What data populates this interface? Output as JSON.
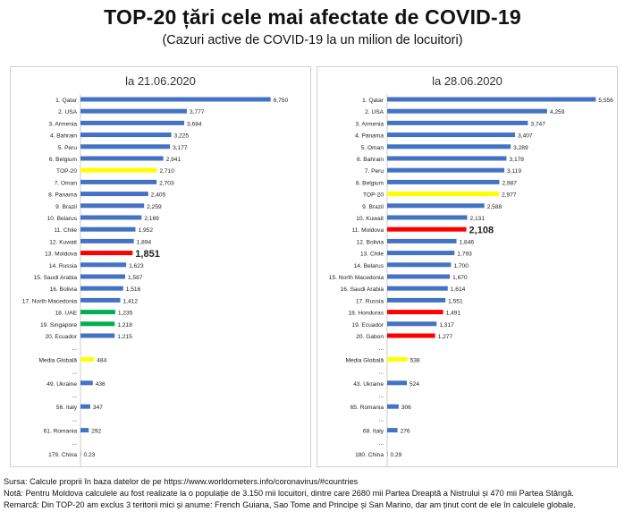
{
  "title": "TOP-20 țări cele mai afectate de COVID-19",
  "subtitle": "(Cazuri active de COVID-19 la un milion de locuitori)",
  "footer": {
    "source": "Sursa: Calcule proprii în baza datelor de pe https://www.worldometers.info/coronavirus/#countries",
    "note": "Notă: Pentru Moldova calculele au fost realizate la o populație de 3.150 mii locuitori, dintre care 2680 mii Partea Dreaptă a Nistrului și 470 mii Partea Stângă.",
    "remark": "Remarcă: Din TOP-20 am exclus 3 teritorii mici și anume: French Guiana, Sao Tome and Principe și San Marino, dar am ținut cont de ele în calculele globale."
  },
  "colors": {
    "blue": "#4472c4",
    "yellow": "#ffff00",
    "red": "#ff0000",
    "green": "#00b050"
  },
  "chart_data": [
    {
      "type": "bar",
      "orientation": "horizontal",
      "title": "la 21.06.2020",
      "xlim": [
        0,
        8000
      ],
      "xticks": [
        "0.00",
        "1,000.00",
        "2,000.00",
        "3,000.00",
        "4,000.00",
        "5,000.00",
        "6,000.00",
        "7,000.00",
        "8,000.00"
      ],
      "categories": [
        {
          "label": "1. Qatar",
          "value": 6750,
          "value_label": "6,750",
          "color": "blue"
        },
        {
          "label": "2. USA",
          "value": 3777,
          "value_label": "3,777",
          "color": "blue"
        },
        {
          "label": "3. Armenia",
          "value": 3684,
          "value_label": "3,684",
          "color": "blue"
        },
        {
          "label": "4. Bahrain",
          "value": 3225,
          "value_label": "3,225",
          "color": "blue"
        },
        {
          "label": "5. Peru",
          "value": 3177,
          "value_label": "3,177",
          "color": "blue"
        },
        {
          "label": "6. Belgium",
          "value": 2941,
          "value_label": "2,941",
          "color": "blue"
        },
        {
          "label": "TOP-20",
          "value": 2710,
          "value_label": "2,710",
          "color": "yellow"
        },
        {
          "label": "7. Oman",
          "value": 2703,
          "value_label": "2,703",
          "color": "blue"
        },
        {
          "label": "8. Panama",
          "value": 2405,
          "value_label": "2,405",
          "color": "blue"
        },
        {
          "label": "9. Brazil",
          "value": 2259,
          "value_label": "2,259",
          "color": "blue"
        },
        {
          "label": "10. Belarus",
          "value": 2169,
          "value_label": "2,169",
          "color": "blue"
        },
        {
          "label": "11. Chile",
          "value": 1952,
          "value_label": "1,952",
          "color": "blue"
        },
        {
          "label": "12. Kuwait",
          "value": 1894,
          "value_label": "1,894",
          "color": "blue"
        },
        {
          "label": "13. Moldova",
          "value": 1851,
          "value_label": "1,851",
          "color": "red",
          "highlight": true
        },
        {
          "label": "14. Russia",
          "value": 1623,
          "value_label": "1,623",
          "color": "blue"
        },
        {
          "label": "15. Saudi Arabia",
          "value": 1587,
          "value_label": "1,587",
          "color": "blue"
        },
        {
          "label": "16. Bolivia",
          "value": 1516,
          "value_label": "1,516",
          "color": "blue"
        },
        {
          "label": "17. North Macedonia",
          "value": 1412,
          "value_label": "1,412",
          "color": "blue"
        },
        {
          "label": "18. UAE",
          "value": 1235,
          "value_label": "1,235",
          "color": "green"
        },
        {
          "label": "19. Singapore",
          "value": 1218,
          "value_label": "1,218",
          "color": "green"
        },
        {
          "label": "20. Ecuador",
          "value": 1215,
          "value_label": "1,215",
          "color": "blue"
        },
        {
          "label": "...",
          "value": null,
          "value_label": "",
          "color": "blue"
        },
        {
          "label": "Media Globală",
          "value": 484,
          "value_label": "484",
          "color": "yellow"
        },
        {
          "label": "...",
          "value": null,
          "value_label": "",
          "color": "blue"
        },
        {
          "label": "49. Ukraine",
          "value": 436,
          "value_label": "436",
          "color": "blue"
        },
        {
          "label": "...",
          "value": null,
          "value_label": "",
          "color": "blue"
        },
        {
          "label": "56. Italy",
          "value": 347,
          "value_label": "347",
          "color": "blue"
        },
        {
          "label": "...",
          "value": null,
          "value_label": "",
          "color": "blue"
        },
        {
          "label": "61. Romania",
          "value": 292,
          "value_label": "292",
          "color": "blue"
        },
        {
          "label": "...",
          "value": null,
          "value_label": "",
          "color": "blue"
        },
        {
          "label": "179. China",
          "value": 0.23,
          "value_label": "0.23",
          "color": "blue"
        }
      ]
    },
    {
      "type": "bar",
      "orientation": "horizontal",
      "title": "la 28.06.2020",
      "xlim": [
        0,
        6000
      ],
      "xticks": [
        "0.00",
        "1000.00",
        "2000.00",
        "3000.00",
        "4000.00",
        "5000.00",
        "6000.00"
      ],
      "categories": [
        {
          "label": "1. Qatar",
          "value": 5556,
          "value_label": "5,556",
          "color": "blue"
        },
        {
          "label": "2. USA",
          "value": 4259,
          "value_label": "4,259",
          "color": "blue"
        },
        {
          "label": "3. Armenia",
          "value": 3747,
          "value_label": "3,747",
          "color": "blue"
        },
        {
          "label": "4. Panama",
          "value": 3407,
          "value_label": "3,407",
          "color": "blue"
        },
        {
          "label": "5. Oman",
          "value": 3289,
          "value_label": "3,289",
          "color": "blue"
        },
        {
          "label": "6. Bahrain",
          "value": 3178,
          "value_label": "3,178",
          "color": "blue"
        },
        {
          "label": "7. Peru",
          "value": 3119,
          "value_label": "3,119",
          "color": "blue"
        },
        {
          "label": "8. Belgium",
          "value": 2987,
          "value_label": "2,987",
          "color": "blue"
        },
        {
          "label": "TOP-20",
          "value": 2977,
          "value_label": "2,977",
          "color": "yellow"
        },
        {
          "label": "9. Brazil",
          "value": 2588,
          "value_label": "2,588",
          "color": "blue"
        },
        {
          "label": "10. Kuwait",
          "value": 2131,
          "value_label": "2,131",
          "color": "blue"
        },
        {
          "label": "11. Moldova",
          "value": 2108,
          "value_label": "2,108",
          "color": "red",
          "highlight": true
        },
        {
          "label": "12. Bolivia",
          "value": 1846,
          "value_label": "1,846",
          "color": "blue"
        },
        {
          "label": "13. Chile",
          "value": 1793,
          "value_label": "1,793",
          "color": "blue"
        },
        {
          "label": "14. Belarus",
          "value": 1700,
          "value_label": "1,700",
          "color": "blue"
        },
        {
          "label": "15. North Macedonia",
          "value": 1670,
          "value_label": "1,670",
          "color": "blue"
        },
        {
          "label": "16. Saudi Arabia",
          "value": 1614,
          "value_label": "1,614",
          "color": "blue"
        },
        {
          "label": "17. Russia",
          "value": 1551,
          "value_label": "1,551",
          "color": "blue"
        },
        {
          "label": "18. Honduras",
          "value": 1491,
          "value_label": "1,491",
          "color": "red"
        },
        {
          "label": "19. Ecuador",
          "value": 1317,
          "value_label": "1,317",
          "color": "blue"
        },
        {
          "label": "20. Gabon",
          "value": 1277,
          "value_label": "1,277",
          "color": "red"
        },
        {
          "label": "...",
          "value": null,
          "value_label": "",
          "color": "blue"
        },
        {
          "label": "Media Globală",
          "value": 538,
          "value_label": "538",
          "color": "yellow"
        },
        {
          "label": "...",
          "value": null,
          "value_label": "",
          "color": "blue"
        },
        {
          "label": "43. Ukraine",
          "value": 524,
          "value_label": "524",
          "color": "blue"
        },
        {
          "label": "...",
          "value": null,
          "value_label": "",
          "color": "blue"
        },
        {
          "label": "65. Romania",
          "value": 306,
          "value_label": "306",
          "color": "blue"
        },
        {
          "label": "...",
          "value": null,
          "value_label": "",
          "color": "blue"
        },
        {
          "label": "68. Italy",
          "value": 276,
          "value_label": "276",
          "color": "blue"
        },
        {
          "label": "...",
          "value": null,
          "value_label": "",
          "color": "blue"
        },
        {
          "label": "180. China",
          "value": 0.29,
          "value_label": "0.29",
          "color": "blue"
        }
      ]
    }
  ]
}
